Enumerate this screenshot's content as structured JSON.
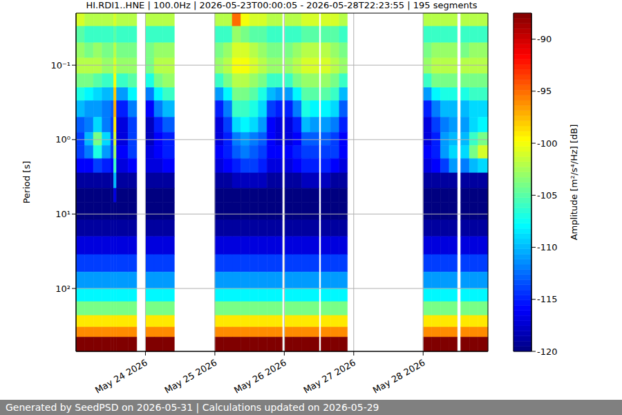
{
  "chart_data": {
    "type": "heatmap",
    "title": "HI.RDI1..HNE | 100.0Hz | 2026-05-23T00:00:05 - 2026-05-28T22:23:55 | 195 segments",
    "y_label": "Period [s]",
    "log": "y",
    "grid": true,
    "xlim": [
      "2026-05-23T00:00:05",
      "2026-05-28T22:23:55"
    ],
    "xticks": [
      {
        "value": "2026-05-24T00:00:00",
        "label": "May 24 2026"
      },
      {
        "value": "2026-05-25T00:00:00",
        "label": "May 25 2026"
      },
      {
        "value": "2026-05-26T00:00:00",
        "label": "May 26 2026"
      },
      {
        "value": "2026-05-27T00:00:00",
        "label": "May 27 2026"
      },
      {
        "value": "2026-05-28T00:00:00",
        "label": "May 28 2026"
      }
    ],
    "ylim": [
      0.02,
      700
    ],
    "yticks": [
      {
        "value": 0.1,
        "label": "10⁻¹"
      },
      {
        "value": 1,
        "label": "10⁰"
      },
      {
        "value": 10,
        "label": "10¹"
      },
      {
        "value": 100,
        "label": "10²"
      }
    ],
    "period_bins": [
      0.02,
      0.03,
      0.05,
      0.08,
      0.13,
      0.2,
      0.3,
      0.5,
      0.8,
      1.2,
      1.8,
      2.8,
      4.5,
      7,
      12,
      20,
      35,
      60,
      100,
      150,
      230,
      330,
      450,
      700
    ],
    "columns": [
      {
        "start": "2026-05-23T00:00:05",
        "end": "2026-05-23T03:00:00",
        "values": [
          -101,
          -105,
          -103,
          -102,
          -104,
          -107,
          -110,
          -113,
          -114,
          -114,
          -116,
          -119,
          -120,
          -120,
          -119,
          -117,
          -114,
          -111,
          -108,
          -104,
          -99,
          -96,
          -87.5
        ]
      },
      {
        "start": "2026-05-23T03:00:00",
        "end": "2026-05-23T06:00:00",
        "values": [
          -102,
          -106,
          -104,
          -102,
          -104,
          -108,
          -111,
          -112,
          -110,
          -112,
          -116,
          -119,
          -120,
          -120,
          -119,
          -117,
          -114,
          -111,
          -108,
          -104,
          -99,
          -96,
          -87.5
        ]
      },
      {
        "start": "2026-05-23T06:00:00",
        "end": "2026-05-23T09:00:00",
        "values": [
          -102,
          -106,
          -103,
          -102,
          -105,
          -109,
          -111,
          -109,
          -104,
          -107,
          -114,
          -119,
          -120,
          -120,
          -119,
          -117,
          -114,
          -111,
          -108,
          -104,
          -99,
          -96,
          -87.5
        ]
      },
      {
        "start": "2026-05-23T09:00:00",
        "end": "2026-05-23T12:00:00",
        "values": [
          -102,
          -106,
          -104,
          -103,
          -106,
          -110,
          -112,
          -112,
          -109,
          -111,
          -115,
          -119,
          -120,
          -120,
          -119,
          -117,
          -114,
          -111,
          -108,
          -104,
          -99,
          -96,
          -87.5
        ]
      },
      {
        "start": "2026-05-23T12:00:00",
        "end": "2026-05-23T13:00:00",
        "values": [
          -102,
          -106,
          -104,
          -103,
          -106,
          -110,
          -113,
          -114,
          -114,
          -114,
          -116,
          -119,
          -120,
          -120,
          -119,
          -117,
          -114,
          -111,
          -108,
          -104,
          -99,
          -96,
          -87.5
        ]
      },
      {
        "start": "2026-05-23T13:00:00",
        "end": "2026-05-23T14:00:00",
        "values": [
          -101,
          -105,
          -102,
          -101,
          -100,
          -98,
          -97,
          -99,
          -101,
          -103,
          -106,
          -110,
          -117,
          -120,
          -119,
          -117,
          -114,
          -111,
          -108,
          -104,
          -99,
          -96,
          -87.5
        ]
      },
      {
        "start": "2026-05-23T14:00:00",
        "end": "2026-05-23T18:00:00",
        "values": [
          -102,
          -106,
          -104,
          -103,
          -106,
          -111,
          -115,
          -117,
          -117,
          -116,
          -117,
          -119,
          -120,
          -120,
          -119,
          -117,
          -114,
          -111,
          -108,
          -104,
          -99,
          -96,
          -87.5
        ]
      },
      {
        "start": "2026-05-23T18:00:00",
        "end": "2026-05-23T21:00:00",
        "values": [
          -102,
          -106,
          -104,
          -103,
          -105,
          -108,
          -112,
          -114,
          -114,
          -114,
          -116,
          -119,
          -120,
          -120,
          -119,
          -117,
          -114,
          -111,
          -108,
          -104,
          -99,
          -96,
          -87.5
        ]
      },
      {
        "start": "2026-05-24T00:00:00",
        "end": "2026-05-24T03:00:00",
        "values": [
          -102,
          -106,
          -104,
          -104,
          -107,
          -112,
          -116,
          -118,
          -118,
          -117,
          -117,
          -119,
          -120,
          -120,
          -119,
          -117,
          -114,
          -111,
          -108,
          -104,
          -99,
          -96,
          -87.5
        ]
      },
      {
        "start": "2026-05-24T03:00:00",
        "end": "2026-05-24T06:00:00",
        "values": [
          -102,
          -106,
          -103,
          -102,
          -104,
          -108,
          -112,
          -115,
          -116,
          -116,
          -117,
          -119,
          -120,
          -120,
          -119,
          -117,
          -114,
          -111,
          -108,
          -104,
          -99,
          -96,
          -87.5
        ]
      },
      {
        "start": "2026-05-24T06:00:00",
        "end": "2026-05-24T10:00:00",
        "values": [
          -102,
          -106,
          -103,
          -102,
          -103,
          -106,
          -110,
          -113,
          -115,
          -115,
          -116,
          -119,
          -120,
          -120,
          -119,
          -117,
          -114,
          -111,
          -108,
          -104,
          -99,
          -96,
          -87.5
        ]
      },
      {
        "start": "2026-05-25T00:00:00",
        "end": "2026-05-25T03:00:00",
        "values": [
          -102,
          -106,
          -104,
          -103,
          -106,
          -111,
          -115,
          -117,
          -117,
          -116,
          -117,
          -119,
          -120,
          -120,
          -119,
          -117,
          -114,
          -111,
          -108,
          -104,
          -99,
          -96,
          -87.5
        ]
      },
      {
        "start": "2026-05-25T03:00:00",
        "end": "2026-05-25T06:00:00",
        "values": [
          -102,
          -106,
          -103,
          -102,
          -104,
          -108,
          -112,
          -114,
          -115,
          -115,
          -116,
          -119,
          -120,
          -120,
          -119,
          -117,
          -114,
          -111,
          -108,
          -104,
          -99,
          -96,
          -87.5
        ]
      },
      {
        "start": "2026-05-25T06:00:00",
        "end": "2026-05-25T09:00:00",
        "values": [
          -95,
          -103,
          -101,
          -100,
          -102,
          -104,
          -106,
          -109,
          -112,
          -113,
          -115,
          -118,
          -120,
          -120,
          -119,
          -117,
          -114,
          -111,
          -108,
          -104,
          -99,
          -96,
          -87.5
        ]
      },
      {
        "start": "2026-05-25T09:00:00",
        "end": "2026-05-25T12:00:00",
        "values": [
          -100,
          -104,
          -101,
          -100,
          -102,
          -104,
          -106,
          -108,
          -111,
          -112,
          -114,
          -118,
          -120,
          -120,
          -119,
          -117,
          -114,
          -111,
          -108,
          -104,
          -99,
          -96,
          -87.5
        ]
      },
      {
        "start": "2026-05-25T12:00:00",
        "end": "2026-05-25T15:00:00",
        "values": [
          -101,
          -105,
          -102,
          -101,
          -103,
          -105,
          -107,
          -109,
          -112,
          -113,
          -114,
          -118,
          -120,
          -120,
          -119,
          -117,
          -114,
          -111,
          -108,
          -104,
          -99,
          -96,
          -87.5
        ]
      },
      {
        "start": "2026-05-25T15:00:00",
        "end": "2026-05-25T18:00:00",
        "values": [
          -101,
          -105,
          -103,
          -102,
          -104,
          -107,
          -109,
          -111,
          -113,
          -114,
          -115,
          -118,
          -120,
          -120,
          -119,
          -117,
          -114,
          -111,
          -108,
          -104,
          -99,
          -96,
          -87.5
        ]
      },
      {
        "start": "2026-05-25T18:00:00",
        "end": "2026-05-25T21:00:00",
        "values": [
          -102,
          -106,
          -104,
          -103,
          -106,
          -110,
          -114,
          -116,
          -116,
          -116,
          -117,
          -119,
          -120,
          -120,
          -119,
          -117,
          -114,
          -111,
          -108,
          -104,
          -99,
          -96,
          -87.5
        ]
      },
      {
        "start": "2026-05-25T21:00:00",
        "end": "2026-05-25T23:18:00",
        "values": [
          -102,
          -106,
          -104,
          -103,
          -106,
          -111,
          -115,
          -117,
          -117,
          -116,
          -117,
          -119,
          -120,
          -120,
          -119,
          -117,
          -114,
          -111,
          -108,
          -104,
          -99,
          -96,
          -87.5
        ]
      },
      {
        "start": "2026-05-26T00:12:00",
        "end": "2026-05-26T03:00:00",
        "values": [
          -102,
          -106,
          -104,
          -103,
          -106,
          -111,
          -115,
          -117,
          -117,
          -116,
          -117,
          -119,
          -120,
          -120,
          -119,
          -117,
          -114,
          -111,
          -108,
          -104,
          -99,
          -96,
          -87.5
        ]
      },
      {
        "start": "2026-05-26T03:00:00",
        "end": "2026-05-26T06:00:00",
        "values": [
          -102,
          -106,
          -103,
          -102,
          -104,
          -108,
          -112,
          -115,
          -116,
          -115,
          -116,
          -119,
          -120,
          -120,
          -119,
          -117,
          -114,
          -111,
          -108,
          -104,
          -99,
          -96,
          -87.5
        ]
      },
      {
        "start": "2026-05-26T06:00:00",
        "end": "2026-05-26T09:00:00",
        "values": [
          -101,
          -105,
          -102,
          -101,
          -103,
          -105,
          -107,
          -110,
          -113,
          -114,
          -115,
          -118,
          -120,
          -120,
          -119,
          -117,
          -114,
          -111,
          -108,
          -104,
          -99,
          -96,
          -87.5
        ]
      },
      {
        "start": "2026-05-26T09:00:00",
        "end": "2026-05-26T12:00:00",
        "values": [
          -101,
          -105,
          -102,
          -101,
          -103,
          -105,
          -108,
          -111,
          -113,
          -114,
          -115,
          -118,
          -120,
          -120,
          -119,
          -117,
          -114,
          -111,
          -108,
          -104,
          -99,
          -96,
          -87.5
        ]
      },
      {
        "start": "2026-05-26T12:42:00",
        "end": "2026-05-26T16:00:00",
        "values": [
          -101,
          -105,
          -102,
          -101,
          -103,
          -105,
          -108,
          -111,
          -113,
          -114,
          -115,
          -118,
          -120,
          -120,
          -119,
          -117,
          -114,
          -111,
          -108,
          -104,
          -99,
          -96,
          -87.5
        ]
      },
      {
        "start": "2026-05-26T16:00:00",
        "end": "2026-05-26T19:00:00",
        "values": [
          -101,
          -105,
          -103,
          -102,
          -104,
          -106,
          -109,
          -112,
          -114,
          -114,
          -116,
          -119,
          -120,
          -120,
          -119,
          -117,
          -114,
          -111,
          -108,
          -104,
          -99,
          -96,
          -87.5
        ]
      },
      {
        "start": "2026-05-26T19:00:00",
        "end": "2026-05-26T21:48:00",
        "values": [
          -102,
          -106,
          -104,
          -103,
          -106,
          -110,
          -113,
          -115,
          -116,
          -116,
          -117,
          -119,
          -120,
          -120,
          -119,
          -117,
          -114,
          -111,
          -108,
          -104,
          -99,
          -96,
          -87.5
        ]
      },
      {
        "start": "2026-05-28T00:00:00",
        "end": "2026-05-28T03:00:00",
        "values": [
          -102,
          -106,
          -104,
          -103,
          -106,
          -111,
          -115,
          -117,
          -117,
          -116,
          -117,
          -119,
          -120,
          -120,
          -119,
          -117,
          -114,
          -111,
          -108,
          -104,
          -99,
          -96,
          -87.5
        ]
      },
      {
        "start": "2026-05-28T03:00:00",
        "end": "2026-05-28T06:00:00",
        "values": [
          -102,
          -106,
          -103,
          -102,
          -104,
          -108,
          -112,
          -114,
          -115,
          -115,
          -116,
          -119,
          -120,
          -120,
          -119,
          -117,
          -114,
          -111,
          -108,
          -104,
          -99,
          -96,
          -87.5
        ]
      },
      {
        "start": "2026-05-28T06:00:00",
        "end": "2026-05-28T09:00:00",
        "values": [
          -102,
          -106,
          -103,
          -102,
          -104,
          -107,
          -110,
          -112,
          -111,
          -111,
          -114,
          -119,
          -120,
          -120,
          -119,
          -117,
          -114,
          -111,
          -108,
          -104,
          -99,
          -96,
          -87.5
        ]
      },
      {
        "start": "2026-05-28T09:00:00",
        "end": "2026-05-28T11:48:00",
        "values": [
          -102,
          -106,
          -103,
          -102,
          -104,
          -107,
          -110,
          -111,
          -110,
          -109,
          -111,
          -119,
          -120,
          -120,
          -119,
          -117,
          -114,
          -111,
          -108,
          -104,
          -99,
          -96,
          -87.5
        ]
      },
      {
        "start": "2026-05-28T13:00:00",
        "end": "2026-05-28T16:00:00",
        "values": [
          -102,
          -106,
          -104,
          -102,
          -104,
          -107,
          -110,
          -111,
          -110,
          -109,
          -112,
          -119,
          -120,
          -120,
          -119,
          -117,
          -114,
          -111,
          -108,
          -104,
          -99,
          -96,
          -87.5
        ]
      },
      {
        "start": "2026-05-28T16:00:00",
        "end": "2026-05-28T19:00:00",
        "values": [
          -102,
          -106,
          -103,
          -102,
          -104,
          -106,
          -109,
          -109,
          -106,
          -104,
          -110,
          -119,
          -120,
          -120,
          -119,
          -117,
          -114,
          -111,
          -108,
          -104,
          -99,
          -96,
          -87.5
        ]
      },
      {
        "start": "2026-05-28T19:00:00",
        "end": "2026-05-28T22:23:55",
        "values": [
          -102,
          -106,
          -103,
          -102,
          -104,
          -106,
          -109,
          -108,
          -104,
          -101,
          -109,
          -119,
          -120,
          -120,
          -119,
          -117,
          -114,
          -111,
          -108,
          -104,
          -99,
          -96,
          -87.5
        ]
      }
    ],
    "colorbar": {
      "label": "Amplitude [m²/s⁴/Hz] [dB]",
      "range": [
        -120,
        -87.5
      ],
      "ticks": [
        -90,
        -95,
        -100,
        -105,
        -110,
        -115,
        -120
      ]
    }
  },
  "footer": "Generated by SeedPSD on 2026-05-31 | Calculations updated on 2026-05-29"
}
